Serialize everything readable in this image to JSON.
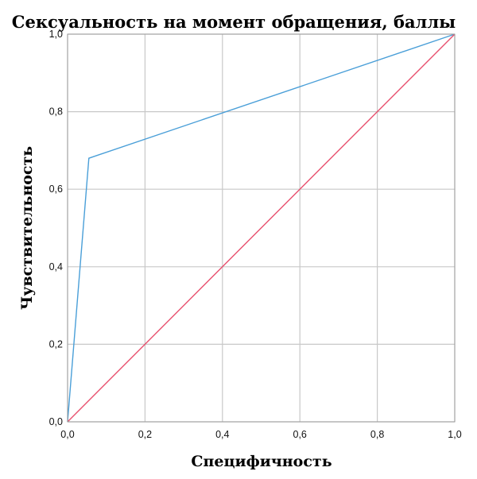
{
  "chart_data": {
    "type": "line",
    "title": "Сексуальность на момент обращения, баллы",
    "xlabel": "Специфичность",
    "ylabel": "Чувствительность",
    "xlim": [
      0,
      1
    ],
    "ylim": [
      0,
      1
    ],
    "x_ticks": [
      "0,0",
      "0,2",
      "0,4",
      "0,6",
      "0,8",
      "1,0"
    ],
    "y_ticks": [
      "0,0",
      "0,2",
      "0,4",
      "0,6",
      "0,8",
      "1,0"
    ],
    "grid": true,
    "legend": "none",
    "series": [
      {
        "color": "#4a9fd8",
        "x": [
          0,
          0.055,
          1
        ],
        "y": [
          0,
          0.68,
          1
        ]
      },
      {
        "color": "#e8506e",
        "x": [
          0,
          1
        ],
        "y": [
          0,
          1
        ]
      }
    ]
  }
}
